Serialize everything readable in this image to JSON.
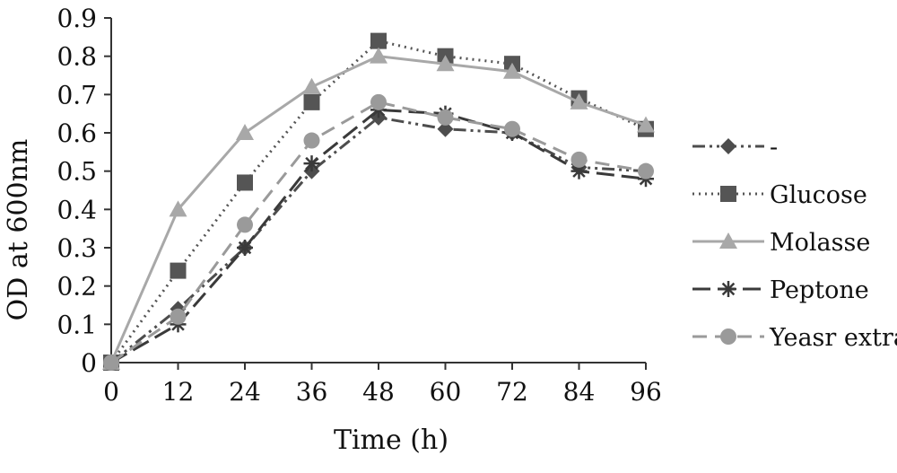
{
  "chart_data": {
    "type": "line",
    "x": [
      0,
      12,
      24,
      36,
      48,
      60,
      72,
      84,
      96
    ],
    "xlabel": "Time (h)",
    "ylabel": "OD at 600nm",
    "xlim": [
      0,
      96
    ],
    "ylim": [
      0,
      0.9
    ],
    "x_ticks": [
      "0",
      "12",
      "24",
      "36",
      "48",
      "60",
      "72",
      "84",
      "96"
    ],
    "y_ticks": [
      "0",
      "0.1",
      "0.2",
      "0.3",
      "0.4",
      "0.5",
      "0.6",
      "0.7",
      "0.8",
      "0.9"
    ],
    "grid": false,
    "legend_position": "right",
    "series": [
      {
        "name": "-",
        "marker": "diamond",
        "dash": "dash-dot-dot",
        "color": "#4d4d4d",
        "values": [
          0,
          0.14,
          0.3,
          0.5,
          0.64,
          0.61,
          0.6,
          0.51,
          0.5
        ]
      },
      {
        "name": "Glucose",
        "marker": "square",
        "dash": "dotted",
        "color": "#555555",
        "values": [
          0,
          0.24,
          0.47,
          0.68,
          0.84,
          0.8,
          0.78,
          0.69,
          0.61
        ]
      },
      {
        "name": "Molasse",
        "marker": "triangle",
        "dash": "solid",
        "color": "#a8a8a8",
        "values": [
          0,
          0.4,
          0.6,
          0.72,
          0.8,
          0.78,
          0.76,
          0.68,
          0.62
        ]
      },
      {
        "name": "Peptone",
        "marker": "asterisk",
        "dash": "long-dash",
        "color": "#3a3a3a",
        "values": [
          0,
          0.1,
          0.3,
          0.52,
          0.66,
          0.65,
          0.6,
          0.5,
          0.48
        ]
      },
      {
        "name": "Yeasr extra",
        "marker": "circle",
        "dash": "dashed",
        "color": "#9a9a9a",
        "values": [
          0,
          0.12,
          0.36,
          0.58,
          0.68,
          0.64,
          0.61,
          0.53,
          0.5
        ]
      }
    ]
  }
}
